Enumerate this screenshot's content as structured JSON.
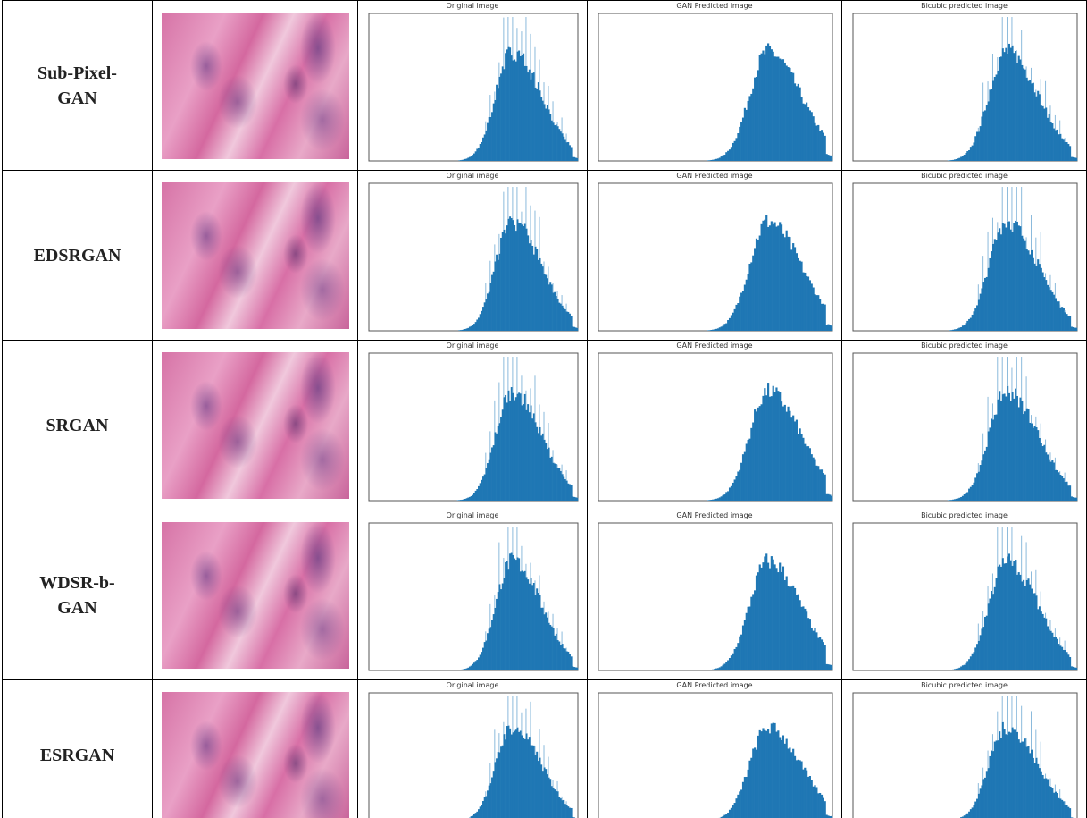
{
  "table": {
    "rows": [
      {
        "method": "Sub-Pixel-GAN",
        "panels": [
          "Original image",
          "GAN Predicted image",
          "Bicubic predicted image"
        ]
      },
      {
        "method": "EDSRGAN",
        "panels": [
          "Original image",
          "GAN Predicted image",
          "Bicubic predicted image"
        ]
      },
      {
        "method": "SRGAN",
        "panels": [
          "Original image",
          "GAN Predicted image",
          "Bicubic predicted image"
        ]
      },
      {
        "method": "WDSR-b-GAN",
        "panels": [
          "Original image",
          "GAN Predicted image",
          "Bicubic predicted image"
        ]
      },
      {
        "method": "ESRGAN",
        "panels": [
          "Original image",
          "GAN Predicted image",
          "Bicubic predicted image"
        ]
      }
    ]
  }
}
